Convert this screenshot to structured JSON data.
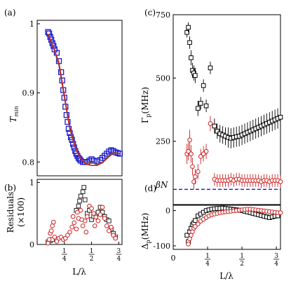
{
  "chart_data": [
    {
      "panel": "a",
      "type": "scatter",
      "panel_label": "(a)",
      "ylabel": "T_min",
      "ylabel_main": "T",
      "ylabel_sub": "min",
      "xlim": [
        0,
        0.78
      ],
      "ylim": [
        0.78,
        1.005
      ],
      "yticks": [
        {
          "v": 0.8,
          "label": "0.8"
        },
        {
          "v": 0.9,
          "label": "0.9"
        },
        {
          "v": 1.0,
          "label": "1"
        }
      ],
      "series": [
        {
          "kind": "points",
          "color": "#1a1acc",
          "x": [
            0.1,
            0.11,
            0.12,
            0.13,
            0.14,
            0.15,
            0.16,
            0.18,
            0.2,
            0.22,
            0.23,
            0.24,
            0.25,
            0.26,
            0.27,
            0.28,
            0.29,
            0.3,
            0.31,
            0.32,
            0.33,
            0.34,
            0.35,
            0.36,
            0.37,
            0.38,
            0.39,
            0.4,
            0.42,
            0.44,
            0.46,
            0.48,
            0.5,
            0.52,
            0.55,
            0.58,
            0.6,
            0.62,
            0.64,
            0.66,
            0.68,
            0.7,
            0.72,
            0.74,
            0.76
          ],
          "y": [
            0.988,
            0.986,
            0.981,
            0.977,
            0.972,
            0.968,
            0.963,
            0.958,
            0.946,
            0.93,
            0.918,
            0.904,
            0.893,
            0.88,
            0.868,
            0.858,
            0.848,
            0.842,
            0.836,
            0.832,
            0.826,
            0.821,
            0.816,
            0.812,
            0.809,
            0.806,
            0.804,
            0.802,
            0.8,
            0.8,
            0.8,
            0.802,
            0.804,
            0.802,
            0.801,
            0.803,
            0.806,
            0.809,
            0.812,
            0.815,
            0.817,
            0.816,
            0.814,
            0.813,
            0.812
          ]
        },
        {
          "kind": "line",
          "color": "#606060",
          "x": [
            0.1,
            0.15,
            0.2,
            0.25,
            0.3,
            0.35,
            0.4,
            0.45,
            0.5,
            0.55,
            0.6,
            0.65,
            0.7,
            0.76
          ],
          "y": [
            0.985,
            0.965,
            0.94,
            0.893,
            0.848,
            0.82,
            0.805,
            0.798,
            0.8,
            0.796,
            0.8,
            0.808,
            0.814,
            0.812
          ]
        },
        {
          "kind": "line",
          "color": "#cc2222",
          "x": [
            0.1,
            0.15,
            0.2,
            0.25,
            0.3,
            0.35,
            0.4,
            0.45,
            0.5,
            0.55,
            0.6,
            0.65,
            0.7,
            0.76
          ],
          "y": [
            0.985,
            0.966,
            0.944,
            0.897,
            0.85,
            0.822,
            0.805,
            0.797,
            0.795,
            0.795,
            0.799,
            0.806,
            0.813,
            0.812
          ]
        }
      ]
    },
    {
      "panel": "b",
      "type": "scatter",
      "panel_label": "(b)",
      "ylabel": "Residuals",
      "ylabel2": "(×100)",
      "xlabel": "L/λ",
      "xlim": [
        0,
        0.78
      ],
      "ylim": [
        0,
        1.05
      ],
      "yticks": [
        {
          "v": 0,
          "label": "0"
        },
        {
          "v": 1,
          "label": "1"
        }
      ],
      "xticks": [
        {
          "v": 0.25,
          "num": "1",
          "den": "4"
        },
        {
          "v": 0.5,
          "num": "1",
          "den": "2"
        },
        {
          "v": 0.75,
          "num": "3",
          "den": "4"
        }
      ],
      "series": [
        {
          "kind": "squares",
          "color": "#222222",
          "x": [
            0.1,
            0.12,
            0.14,
            0.36,
            0.38,
            0.39,
            0.4,
            0.42,
            0.43,
            0.44,
            0.46,
            0.48,
            0.5,
            0.52,
            0.54,
            0.56,
            0.58,
            0.6,
            0.62,
            0.64,
            0.66,
            0.68,
            0.7,
            0.72
          ],
          "y": [
            0.04,
            0.06,
            0.08,
            0.55,
            0.62,
            0.7,
            0.78,
            0.85,
            0.92,
            0.72,
            0.5,
            0.55,
            0.4,
            0.45,
            0.48,
            0.52,
            0.6,
            0.52,
            0.45,
            0.4,
            0.38,
            0.25,
            0.18,
            0.12
          ]
        },
        {
          "kind": "circles",
          "color": "#cc2222",
          "x": [
            0.1,
            0.11,
            0.12,
            0.13,
            0.14,
            0.15,
            0.16,
            0.18,
            0.2,
            0.22,
            0.24,
            0.26,
            0.28,
            0.3,
            0.32,
            0.34,
            0.36,
            0.38,
            0.4,
            0.42,
            0.44,
            0.46,
            0.48,
            0.5,
            0.52,
            0.54,
            0.56,
            0.58,
            0.6,
            0.62,
            0.64,
            0.66,
            0.68,
            0.7,
            0.72,
            0.33,
            0.37,
            0.41,
            0.45,
            0.53
          ],
          "y": [
            0.02,
            0.08,
            0.18,
            0.22,
            0.3,
            0.36,
            0.12,
            0.05,
            0.1,
            0.12,
            0.08,
            0.1,
            0.15,
            0.2,
            0.28,
            0.35,
            0.25,
            0.42,
            0.55,
            0.3,
            0.38,
            0.45,
            0.62,
            0.58,
            0.5,
            0.44,
            0.38,
            0.48,
            0.6,
            0.42,
            0.3,
            0.22,
            0.28,
            0.15,
            0.1,
            0.45,
            0.52,
            0.4,
            0.2,
            0.3
          ]
        }
      ]
    },
    {
      "panel": "c",
      "type": "scatter",
      "panel_label": "(c)",
      "ylabel": "Γ_p (MHz)",
      "ylabel_main": "Γ",
      "ylabel_sub": "p",
      "ylabel_unit": "(MHz)",
      "xlim": [
        0,
        0.78
      ],
      "ylim": [
        0,
        750
      ],
      "yticks": [
        {
          "v": 250,
          "label": "250"
        },
        {
          "v": 500,
          "label": "500"
        },
        {
          "v": 750,
          "label": "750"
        }
      ],
      "hline": {
        "value": 60,
        "color": "#1a1acc",
        "label": "βN"
      },
      "series": [
        {
          "kind": "squares-err",
          "color": "#000000",
          "x": [
            0.1,
            0.11,
            0.12,
            0.13,
            0.14,
            0.15,
            0.16,
            0.18,
            0.2,
            0.22,
            0.24,
            0.27,
            0.3,
            0.32,
            0.34,
            0.36,
            0.38,
            0.4,
            0.42,
            0.44,
            0.46,
            0.48,
            0.5,
            0.52,
            0.54,
            0.56,
            0.58,
            0.6,
            0.62,
            0.64,
            0.66,
            0.68,
            0.7,
            0.72,
            0.74,
            0.76,
            0.78
          ],
          "y": [
            680,
            700,
            640,
            580,
            530,
            520,
            510,
            380,
            400,
            470,
            390,
            540,
            310,
            290,
            280,
            275,
            270,
            265,
            262,
            265,
            268,
            270,
            275,
            280,
            285,
            290,
            295,
            300,
            305,
            310,
            315,
            320,
            325,
            330,
            335,
            340,
            345
          ],
          "err": [
            20,
            20,
            25,
            30,
            30,
            30,
            30,
            30,
            25,
            25,
            25,
            25,
            30,
            30,
            35,
            35,
            35,
            40,
            40,
            40,
            40,
            40,
            40,
            40,
            40,
            40,
            40,
            40,
            40,
            40,
            40,
            40,
            40,
            40,
            40,
            40,
            40
          ]
        },
        {
          "kind": "circles-err",
          "color": "#cc2222",
          "x": [
            0.1,
            0.11,
            0.12,
            0.13,
            0.14,
            0.15,
            0.16,
            0.18,
            0.2,
            0.22,
            0.24,
            0.27,
            0.3,
            0.32,
            0.34,
            0.36,
            0.38,
            0.4,
            0.42,
            0.44,
            0.46,
            0.48,
            0.5,
            0.52,
            0.54,
            0.56,
            0.58,
            0.6,
            0.62,
            0.64,
            0.66,
            0.68,
            0.7,
            0.72,
            0.74,
            0.76,
            0.78
          ],
          "y": [
            200,
            210,
            255,
            200,
            150,
            90,
            110,
            130,
            190,
            200,
            210,
            320,
            100,
            95,
            95,
            95,
            95,
            95,
            100,
            95,
            100,
            100,
            95,
            95,
            95,
            95,
            95,
            95,
            95,
            90,
            95,
            95,
            90,
            95,
            95,
            95,
            90
          ],
          "err": [
            40,
            35,
            40,
            35,
            35,
            30,
            30,
            30,
            30,
            30,
            30,
            30,
            25,
            25,
            25,
            25,
            25,
            25,
            25,
            25,
            25,
            25,
            25,
            25,
            25,
            25,
            25,
            25,
            25,
            25,
            25,
            25,
            25,
            25,
            25,
            25,
            25
          ]
        }
      ]
    },
    {
      "panel": "d",
      "type": "scatter",
      "panel_label": "(d)",
      "ylabel": "Δ_p (MHz)",
      "ylabel_main": "Δ",
      "ylabel_sub": "p",
      "ylabel_unit": "(MHz)",
      "xlabel": "L/λ",
      "xlim": [
        0,
        0.78
      ],
      "ylim": [
        -110,
        15
      ],
      "yticks": [
        {
          "v": -100,
          "label": "-100"
        },
        {
          "v": 0,
          "label": "0"
        }
      ],
      "xticks": [
        {
          "v": 0,
          "num": "0",
          "den": ""
        },
        {
          "v": 0.25,
          "num": "1",
          "den": "4"
        },
        {
          "v": 0.5,
          "num": "1",
          "den": "2"
        },
        {
          "v": 0.75,
          "num": "3",
          "den": "4"
        }
      ],
      "series": [
        {
          "kind": "squares",
          "color": "#000000",
          "x": [
            0.1,
            0.11,
            0.12,
            0.13,
            0.14,
            0.15,
            0.16,
            0.18,
            0.2,
            0.22,
            0.24,
            0.26,
            0.28,
            0.3,
            0.32,
            0.34,
            0.36,
            0.38,
            0.4,
            0.42,
            0.44,
            0.46,
            0.48,
            0.5,
            0.52,
            0.54,
            0.56,
            0.58,
            0.6,
            0.62,
            0.64,
            0.66,
            0.68,
            0.7,
            0.72,
            0.74,
            0.76
          ],
          "y": [
            -70,
            -88,
            -60,
            -50,
            -40,
            -35,
            -28,
            -15,
            -10,
            -5,
            0,
            2,
            4,
            5,
            6,
            6,
            7,
            6,
            5,
            4,
            3,
            2,
            1,
            0,
            -2,
            -4,
            -6,
            -8,
            -10,
            -12,
            -14,
            -16,
            -18,
            -20,
            -18,
            -16,
            -15
          ]
        },
        {
          "kind": "circles",
          "color": "#cc2222",
          "x": [
            0.11,
            0.12,
            0.13,
            0.14,
            0.15,
            0.16,
            0.18,
            0.2,
            0.22,
            0.24,
            0.26,
            0.28,
            0.3,
            0.32,
            0.34,
            0.36,
            0.38,
            0.4,
            0.42,
            0.44,
            0.46,
            0.48,
            0.5,
            0.52,
            0.54,
            0.56,
            0.58,
            0.6,
            0.62,
            0.64,
            0.66,
            0.68,
            0.7,
            0.72,
            0.74,
            0.76,
            0.78
          ],
          "y": [
            -95,
            -80,
            -70,
            -60,
            -50,
            -45,
            -38,
            -30,
            -25,
            -20,
            -15,
            -12,
            -10,
            -8,
            -6,
            -5,
            -4,
            -3,
            -2,
            -1,
            0,
            1,
            2,
            3,
            4,
            4,
            3,
            2,
            1,
            0,
            -1,
            -2,
            -3,
            -4,
            -5,
            -6,
            -6
          ]
        }
      ]
    }
  ]
}
